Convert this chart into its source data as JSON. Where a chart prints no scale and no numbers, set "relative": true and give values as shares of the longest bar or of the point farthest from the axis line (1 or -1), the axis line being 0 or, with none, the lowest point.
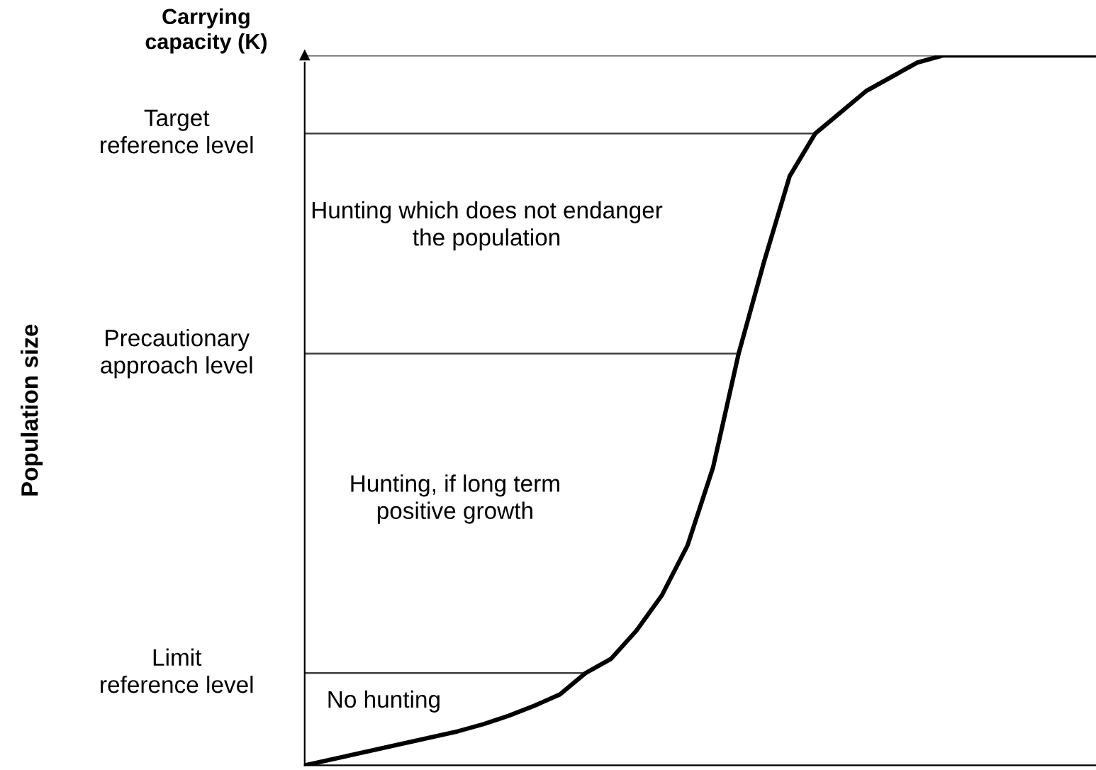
{
  "chart_data": {
    "type": "line",
    "relative": true,
    "categories": [
      null,
      null,
      null,
      null,
      null,
      null,
      null,
      null,
      null,
      null,
      null,
      null,
      null,
      null,
      null,
      null,
      null,
      null,
      null,
      null,
      null,
      null,
      null,
      null,
      null,
      null,
      null,
      null,
      null,
      null,
      null,
      null
    ],
    "series": [
      {
        "color": "#000000",
        "values": [
          0,
          0.008,
          0.016,
          0.024,
          0.032,
          0.04,
          0.048,
          0.058,
          0.07,
          0.084,
          0.1,
          0.13,
          0.15,
          0.19,
          0.24,
          0.31,
          0.42,
          0.58,
          0.71,
          0.83,
          0.89,
          0.92,
          0.95,
          0.97,
          0.99,
          1.0,
          1.0,
          1.0,
          1.0,
          1.0,
          1.0,
          1.0
        ]
      }
    ],
    "ref_lines": [
      {
        "axis": "y",
        "value": 1.0,
        "label": "Carrying\ncapacity (K)",
        "color": "#404040"
      },
      {
        "axis": "y",
        "value": 0.89,
        "label": "Target\nreference level",
        "color": "#404040"
      },
      {
        "axis": "y",
        "value": 0.58,
        "label": "Precautionary\napproach level",
        "color": "#404040"
      },
      {
        "axis": "y",
        "value": 0.13,
        "label": "Limit\nreference level",
        "color": "#404040"
      }
    ],
    "annotations": [
      "Population size",
      "Hunting which does not endanger\nthe population",
      "Hunting, if long term\npositive growth",
      "No hunting"
    ],
    "legend": false,
    "marker": "none",
    "line_style": "solid"
  }
}
